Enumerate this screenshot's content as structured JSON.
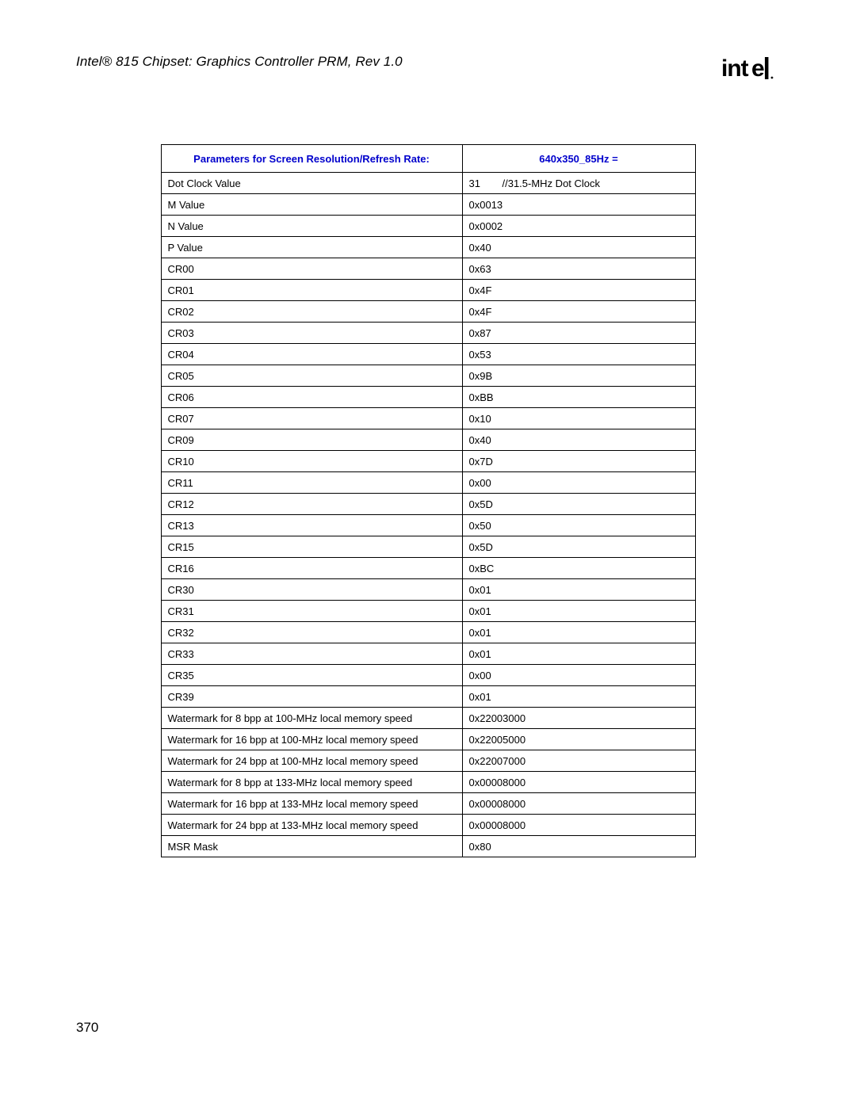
{
  "document": {
    "title": "Intel® 815 Chipset: Graphics Controller PRM, Rev 1.0",
    "logo_text": "intel",
    "page_number": "370"
  },
  "table": {
    "header_left": "Parameters for Screen Resolution/Refresh Rate:",
    "header_right": "640x350_85Hz =",
    "header_color": "#0000cc",
    "border_color": "#000000",
    "font_size_header": 13,
    "font_size_body": 13,
    "rows": [
      {
        "param": "Dot Clock Value",
        "value_left": "31",
        "value_right": "//31.5-MHz Dot Clock"
      },
      {
        "param": "M Value",
        "value": "0x0013"
      },
      {
        "param": "N Value",
        "value": "0x0002"
      },
      {
        "param": "P Value",
        "value": "0x40"
      },
      {
        "param": "CR00",
        "value": "0x63"
      },
      {
        "param": "CR01",
        "value": "0x4F"
      },
      {
        "param": "CR02",
        "value": "0x4F"
      },
      {
        "param": "CR03",
        "value": "0x87"
      },
      {
        "param": "CR04",
        "value": "0x53"
      },
      {
        "param": "CR05",
        "value": "0x9B"
      },
      {
        "param": "CR06",
        "value": "0xBB"
      },
      {
        "param": "CR07",
        "value": "0x10"
      },
      {
        "param": "CR09",
        "value": "0x40"
      },
      {
        "param": "CR10",
        "value": "0x7D"
      },
      {
        "param": "CR11",
        "value": "0x00"
      },
      {
        "param": "CR12",
        "value": "0x5D"
      },
      {
        "param": "CR13",
        "value": "0x50"
      },
      {
        "param": "CR15",
        "value": "0x5D"
      },
      {
        "param": "CR16",
        "value": "0xBC"
      },
      {
        "param": "CR30",
        "value": "0x01"
      },
      {
        "param": "CR31",
        "value": "0x01"
      },
      {
        "param": "CR32",
        "value": "0x01"
      },
      {
        "param": "CR33",
        "value": "0x01"
      },
      {
        "param": "CR35",
        "value": "0x00"
      },
      {
        "param": "CR39",
        "value": "0x01"
      },
      {
        "param": "Watermark for 8 bpp at 100-MHz local memory speed",
        "value": "0x22003000"
      },
      {
        "param": "Watermark for 16 bpp at 100-MHz local memory speed",
        "value": "0x22005000"
      },
      {
        "param": "Watermark for 24 bpp at 100-MHz local memory speed",
        "value": "0x22007000"
      },
      {
        "param": "Watermark for 8 bpp at 133-MHz local memory speed",
        "value": "0x00008000"
      },
      {
        "param": "Watermark for 16 bpp at 133-MHz local memory speed",
        "value": "0x00008000"
      },
      {
        "param": "Watermark for 24 bpp at 133-MHz local memory speed",
        "value": "0x00008000"
      },
      {
        "param": "MSR Mask",
        "value": "0x80"
      }
    ]
  }
}
